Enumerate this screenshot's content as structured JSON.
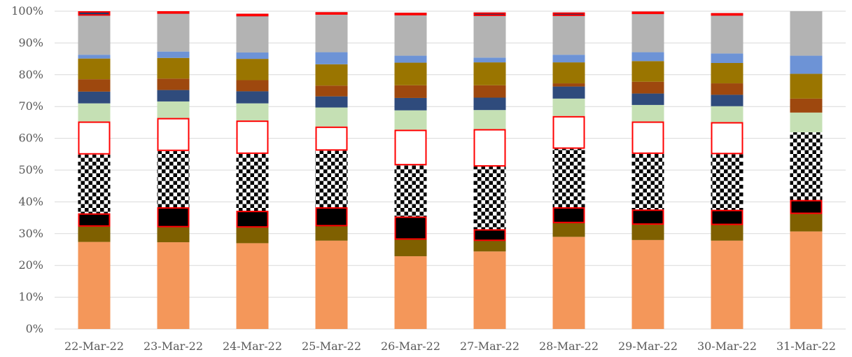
{
  "chart_data": {
    "type": "bar",
    "stacked": true,
    "normalized_percent": true,
    "categories": [
      "22-Mar-22",
      "23-Mar-22",
      "24-Mar-22",
      "25-Mar-22",
      "26-Mar-22",
      "27-Mar-22",
      "28-Mar-22",
      "29-Mar-22",
      "30-Mar-22",
      "31-Mar-22"
    ],
    "ylim": [
      0,
      100
    ],
    "yticks": [
      "0%",
      "10%",
      "20%",
      "30%",
      "40%",
      "50%",
      "60%",
      "70%",
      "80%",
      "90%",
      "100%"
    ],
    "grid": true,
    "legend": "none",
    "series": [
      {
        "color": "#f4975a",
        "fill": "solid",
        "outline": "none",
        "values": [
          27.4,
          27.3,
          27.0,
          27.8,
          22.9,
          24.4,
          29.0,
          28.0,
          27.8,
          30.7
        ]
      },
      {
        "color": "#7f6000",
        "fill": "solid",
        "outline": "none",
        "values": [
          4.8,
          4.7,
          4.9,
          4.5,
          5.2,
          3.3,
          4.3,
          4.8,
          4.9,
          5.5
        ]
      },
      {
        "color": "#000000",
        "fill": "solid",
        "outline": "#ff0000",
        "values": [
          4.2,
          6.3,
          5.3,
          6.0,
          7.3,
          3.7,
          5.0,
          4.8,
          4.8,
          4.4
        ]
      },
      {
        "color": "#000000",
        "fill": "checker",
        "outline": "none",
        "values": [
          18.5,
          17.7,
          17.9,
          17.8,
          16.1,
          19.7,
          18.4,
          17.5,
          17.5,
          21.3
        ]
      },
      {
        "color": "#ffffff",
        "fill": "solid",
        "outline": "#ff0000",
        "values": [
          10.4,
          10.4,
          10.5,
          7.6,
          11.2,
          11.8,
          10.3,
          10.2,
          10.1,
          0.0
        ]
      },
      {
        "color": "#c5e0b4",
        "fill": "solid",
        "outline": "none",
        "values": [
          5.7,
          5.2,
          5.4,
          6.0,
          6.1,
          6.0,
          5.5,
          5.2,
          5.0,
          6.2
        ]
      },
      {
        "color": "#2f4b7c",
        "fill": "solid",
        "outline": "none",
        "values": [
          3.7,
          3.6,
          3.8,
          3.5,
          3.9,
          3.9,
          3.8,
          3.6,
          3.6,
          0.0
        ]
      },
      {
        "color": "#9e480e",
        "fill": "solid",
        "outline": "none",
        "values": [
          3.9,
          3.6,
          3.5,
          3.4,
          4.0,
          3.9,
          1.0,
          3.7,
          3.6,
          4.4
        ]
      },
      {
        "color": "#9a7500",
        "fill": "solid",
        "outline": "none",
        "values": [
          6.5,
          6.5,
          6.7,
          6.7,
          7.1,
          7.2,
          6.6,
          6.5,
          6.4,
          7.8
        ]
      },
      {
        "color": "#6d93d6",
        "fill": "solid",
        "outline": "none",
        "values": [
          1.2,
          2.0,
          2.0,
          3.8,
          2.2,
          1.5,
          2.4,
          2.8,
          3.0,
          5.7
        ]
      },
      {
        "color": "#b3b3b3",
        "fill": "solid",
        "outline": "none",
        "values": [
          12.3,
          11.9,
          11.4,
          11.8,
          12.7,
          13.1,
          12.2,
          12.0,
          11.9,
          14.0
        ]
      },
      {
        "color": "#203864",
        "fill": "solid",
        "outline": "#ff0000",
        "values": [
          1.4,
          0.8,
          0.8,
          0.8,
          0.8,
          1.1,
          1.1,
          0.8,
          0.8,
          0.0
        ]
      }
    ]
  }
}
